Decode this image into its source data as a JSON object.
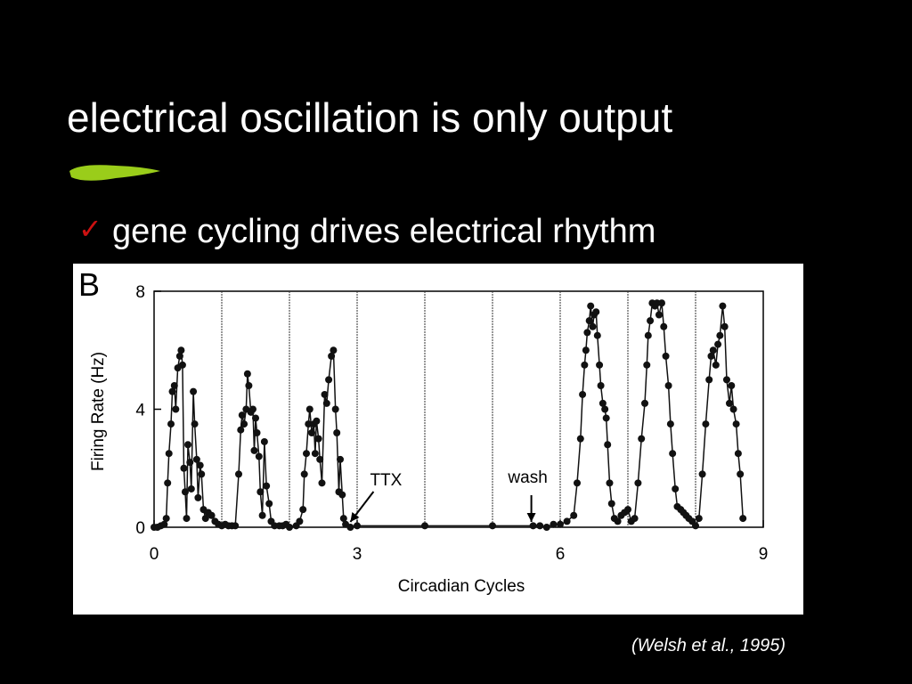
{
  "slide": {
    "title": "electrical oscillation is only output",
    "bullet": "gene cycling drives electrical rhythm",
    "citation": "(Welsh et al., 1995)"
  },
  "chart_data": {
    "type": "line",
    "panel": "B",
    "ylabel": "Firing Rate (Hz)",
    "xlabel": "Circadian Cycles",
    "xlim": [
      0,
      9
    ],
    "ylim": [
      0,
      8
    ],
    "xticks": [
      0,
      3,
      6,
      9
    ],
    "yticks": [
      0,
      4,
      8
    ],
    "cycle_lines": [
      1,
      2,
      3,
      4,
      5,
      6,
      7,
      8
    ],
    "color": "#111111",
    "markers": true,
    "annotations": [
      {
        "text": "TTX",
        "x": 2.9,
        "y": 0
      },
      {
        "text": "wash",
        "x": 5.6,
        "y": 0
      }
    ],
    "x": [
      0,
      0.05,
      0.1,
      0.15,
      0.18,
      0.2,
      0.22,
      0.25,
      0.27,
      0.3,
      0.32,
      0.35,
      0.38,
      0.4,
      0.42,
      0.44,
      0.46,
      0.48,
      0.5,
      0.53,
      0.55,
      0.58,
      0.6,
      0.63,
      0.65,
      0.68,
      0.7,
      0.73,
      0.76,
      0.8,
      0.85,
      0.9,
      0.95,
      1.0,
      1.05,
      1.1,
      1.15,
      1.2,
      1.25,
      1.28,
      1.3,
      1.33,
      1.36,
      1.38,
      1.4,
      1.43,
      1.46,
      1.48,
      1.5,
      1.52,
      1.55,
      1.57,
      1.6,
      1.63,
      1.66,
      1.7,
      1.73,
      1.78,
      1.85,
      1.9,
      1.95,
      2.0,
      2.1,
      2.15,
      2.2,
      2.22,
      2.25,
      2.28,
      2.3,
      2.33,
      2.36,
      2.38,
      2.4,
      2.43,
      2.45,
      2.48,
      2.52,
      2.55,
      2.58,
      2.62,
      2.65,
      2.68,
      2.7,
      2.73,
      2.75,
      2.78,
      2.8,
      2.83,
      2.9,
      3.0,
      4.0,
      5.0,
      5.6,
      5.7,
      5.8,
      5.9,
      6.0,
      6.1,
      6.2,
      6.25,
      6.3,
      6.33,
      6.36,
      6.38,
      6.4,
      6.43,
      6.45,
      6.48,
      6.5,
      6.53,
      6.55,
      6.58,
      6.6,
      6.63,
      6.66,
      6.68,
      6.7,
      6.73,
      6.76,
      6.8,
      6.85,
      6.9,
      6.95,
      7.0,
      7.05,
      7.1,
      7.15,
      7.2,
      7.25,
      7.28,
      7.3,
      7.33,
      7.36,
      7.4,
      7.43,
      7.46,
      7.5,
      7.53,
      7.56,
      7.6,
      7.63,
      7.66,
      7.7,
      7.73,
      7.78,
      7.82,
      7.86,
      7.9,
      7.95,
      8.0,
      8.05,
      8.1,
      8.15,
      8.2,
      8.23,
      8.26,
      8.3,
      8.33,
      8.36,
      8.4,
      8.43,
      8.46,
      8.5,
      8.53,
      8.56,
      8.6,
      8.63,
      8.66,
      8.7
    ],
    "values": [
      0,
      0,
      0.05,
      0.1,
      0.3,
      1.5,
      2.5,
      3.5,
      4.6,
      4.8,
      4,
      5.4,
      5.8,
      6,
      5.5,
      2,
      1.2,
      0.3,
      2.8,
      2.2,
      1.3,
      4.6,
      3.5,
      2.3,
      1,
      2.1,
      1.8,
      0.6,
      0.3,
      0.5,
      0.4,
      0.2,
      0.1,
      0.05,
      0.1,
      0.05,
      0.05,
      0.05,
      1.8,
      3.3,
      3.8,
      3.5,
      4,
      5.2,
      4.8,
      3.9,
      4,
      2.6,
      3.7,
      3.2,
      2.4,
      1.2,
      0.4,
      2.9,
      1.4,
      0.8,
      0.2,
      0.05,
      0.05,
      0.05,
      0.1,
      0,
      0.05,
      0.2,
      0.6,
      1.8,
      2.5,
      3.5,
      4,
      3.2,
      3.5,
      2.5,
      3.6,
      3,
      2.3,
      1.5,
      4.5,
      4.2,
      5,
      5.8,
      6,
      4,
      3.2,
      1.2,
      2.3,
      1.1,
      0.3,
      0.1,
      0,
      0.05,
      0.05,
      0.05,
      0.05,
      0.05,
      0,
      0.1,
      0.1,
      0.2,
      0.4,
      1.5,
      3,
      4.5,
      5.5,
      6,
      6.6,
      7,
      7.5,
      6.8,
      7.2,
      7.3,
      6.5,
      5.5,
      4.8,
      4.2,
      4,
      3.7,
      2.8,
      1.5,
      0.8,
      0.3,
      0.2,
      0.4,
      0.5,
      0.6,
      0.2,
      0.3,
      1.5,
      3,
      4.2,
      5.5,
      6.5,
      7,
      7.6,
      7.5,
      7.6,
      7.2,
      7.6,
      6.8,
      5.8,
      4.8,
      3.5,
      2.5,
      1.3,
      0.7,
      0.6,
      0.5,
      0.4,
      0.3,
      0.2,
      0.05,
      0.3,
      1.8,
      3.5,
      5,
      5.8,
      6,
      5.5,
      6.2,
      6.5,
      7.5,
      6.8,
      5,
      4.2,
      4.8,
      4,
      3.5,
      2.5,
      1.8,
      0.3
    ]
  }
}
